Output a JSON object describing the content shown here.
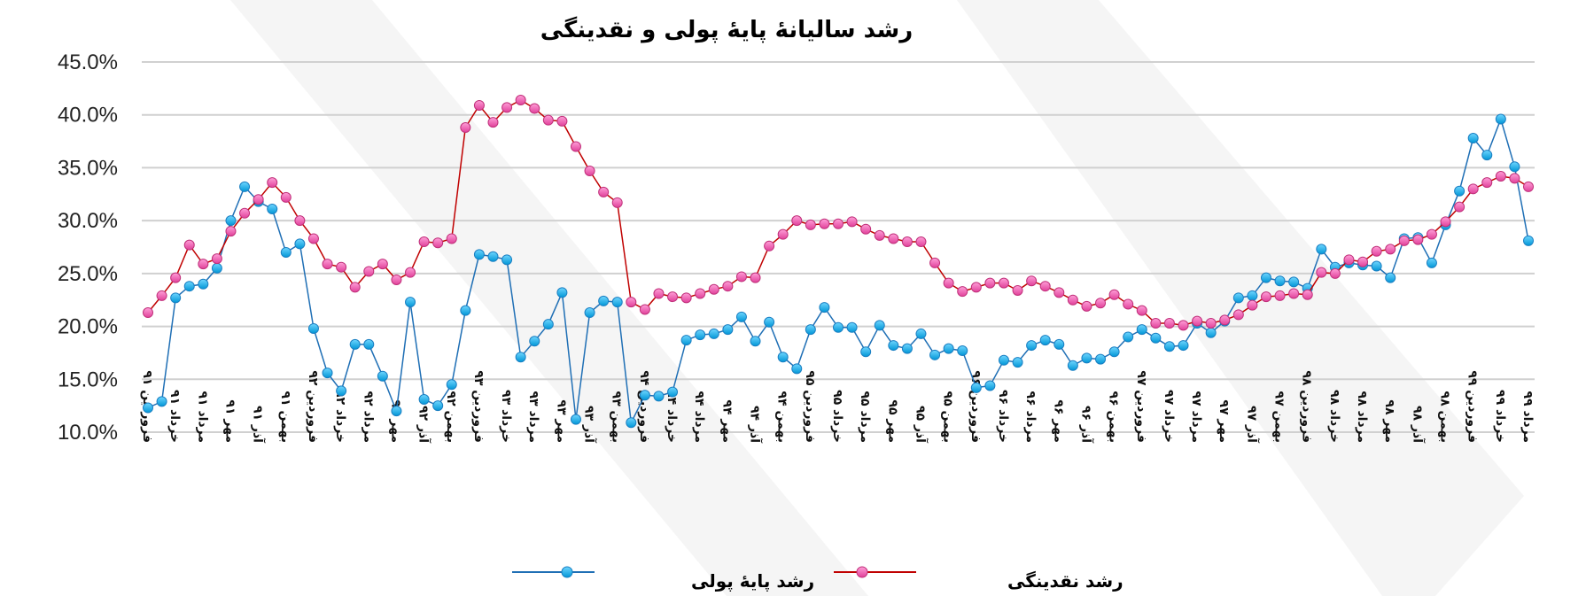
{
  "chart_data": {
    "type": "line",
    "title": "رشد سالیانهٔ پایهٔ پولی و نقدینگی",
    "ylim": [
      10,
      45
    ],
    "yticks": [
      "10.0%",
      "15.0%",
      "20.0%",
      "25.0%",
      "30.0%",
      "35.0%",
      "40.0%",
      "45.0%"
    ],
    "grid": true,
    "legend_position": "bottom",
    "x_labels": [
      "فروردین ۹۱",
      "خرداد ۹۱",
      "مرداد ۹۱",
      "مهر ۹۱",
      "آذر ۹۱",
      "بهمن ۹۱",
      "فروردین ۹۲",
      "خرداد ۹۲",
      "مرداد ۹۲",
      "مهر ۹۲",
      "آذر ۹۲",
      "بهمن ۹۲",
      "فروردین ۹۳",
      "خرداد ۹۳",
      "مرداد ۹۳",
      "مهر ۹۳",
      "آذر ۹۳",
      "بهمن ۹۳",
      "فروردین ۹۴",
      "خرداد ۹۴",
      "مرداد ۹۴",
      "مهر ۹۴",
      "آذر ۹۴",
      "بهمن ۹۴",
      "فروردین ۹۵",
      "خرداد ۹۵",
      "مرداد ۹۵",
      "مهر ۹۵",
      "آذر ۹۵",
      "بهمن ۹۵",
      "فروردین ۹۶",
      "خرداد ۹۶",
      "مرداد ۹۶",
      "مهر ۹۶",
      "آذر ۹۶",
      "بهمن ۹۶",
      "فروردین ۹۷",
      "خرداد ۹۷",
      "مرداد ۹۷",
      "مهر ۹۷",
      "آذر ۹۷",
      "بهمن ۹۷",
      "فروردین ۹۸",
      "خرداد ۹۸",
      "مرداد ۹۸",
      "مهر ۹۸",
      "آذر ۹۸",
      "بهمن ۹۸",
      "فروردین ۹۹",
      "خرداد ۹۹",
      "مرداد ۹۹"
    ],
    "series": [
      {
        "name": "رشد پایهٔ پولی",
        "color": "#1f6fb5",
        "marker_color": "#00b0f0",
        "values": [
          12.3,
          12.9,
          22.7,
          23.8,
          24.0,
          25.5,
          30.0,
          33.2,
          31.8,
          31.1,
          27.0,
          27.8,
          19.8,
          15.6,
          13.9,
          18.3,
          18.3,
          15.3,
          12.0,
          22.3,
          13.1,
          12.5,
          14.5,
          21.5,
          26.8,
          26.6,
          26.3,
          17.1,
          18.6,
          20.2,
          23.2,
          11.2,
          21.3,
          22.4,
          22.3,
          10.9,
          13.5,
          13.4,
          13.8,
          18.7,
          19.2,
          19.3,
          19.7,
          20.9,
          18.6,
          20.4,
          17.1,
          16.0,
          19.7,
          21.8,
          19.9,
          19.9,
          17.6,
          20.1,
          18.2,
          17.9,
          19.3,
          17.3,
          17.9,
          17.7,
          14.2,
          14.4,
          16.8,
          16.6,
          18.2,
          18.7,
          18.3,
          16.3,
          17.0,
          16.9,
          17.6,
          19.0,
          19.7,
          18.9,
          18.1,
          18.2,
          20.3,
          19.4,
          20.5,
          22.7,
          22.9,
          24.6,
          24.3,
          24.2,
          23.6,
          27.3,
          25.6,
          26.0,
          25.8,
          25.7,
          24.6,
          28.3,
          28.4,
          26.0,
          29.6,
          32.8,
          37.8,
          36.2,
          39.6,
          35.1,
          28.1
        ]
      },
      {
        "name": "رشد نقدینگی",
        "color": "#c00000",
        "marker_color": "#ff66cc",
        "values": [
          21.3,
          22.9,
          24.6,
          27.7,
          25.9,
          26.4,
          29.0,
          30.7,
          32.0,
          33.6,
          32.2,
          30.0,
          28.3,
          25.9,
          25.6,
          23.7,
          25.2,
          25.9,
          24.4,
          25.1,
          28.0,
          27.9,
          28.3,
          38.8,
          40.9,
          39.3,
          40.7,
          41.4,
          40.6,
          39.5,
          39.4,
          37.0,
          34.7,
          32.7,
          31.7,
          22.3,
          21.6,
          23.1,
          22.8,
          22.7,
          23.1,
          23.5,
          23.8,
          24.7,
          24.6,
          27.6,
          28.7,
          30.0,
          29.6,
          29.7,
          29.7,
          29.9,
          29.2,
          28.6,
          28.3,
          28.0,
          28.0,
          26.0,
          24.1,
          23.3,
          23.7,
          24.1,
          24.1,
          23.4,
          24.3,
          23.8,
          23.2,
          22.5,
          21.9,
          22.2,
          23.0,
          22.1,
          21.5,
          20.3,
          20.3,
          20.1,
          20.5,
          20.3,
          20.6,
          21.1,
          22.0,
          22.8,
          22.9,
          23.1,
          23.0,
          25.1,
          25.0,
          26.3,
          26.1,
          27.1,
          27.3,
          28.1,
          28.2,
          28.7,
          29.9,
          31.3,
          33.0,
          33.6,
          34.2,
          34.0,
          33.2
        ]
      }
    ]
  }
}
